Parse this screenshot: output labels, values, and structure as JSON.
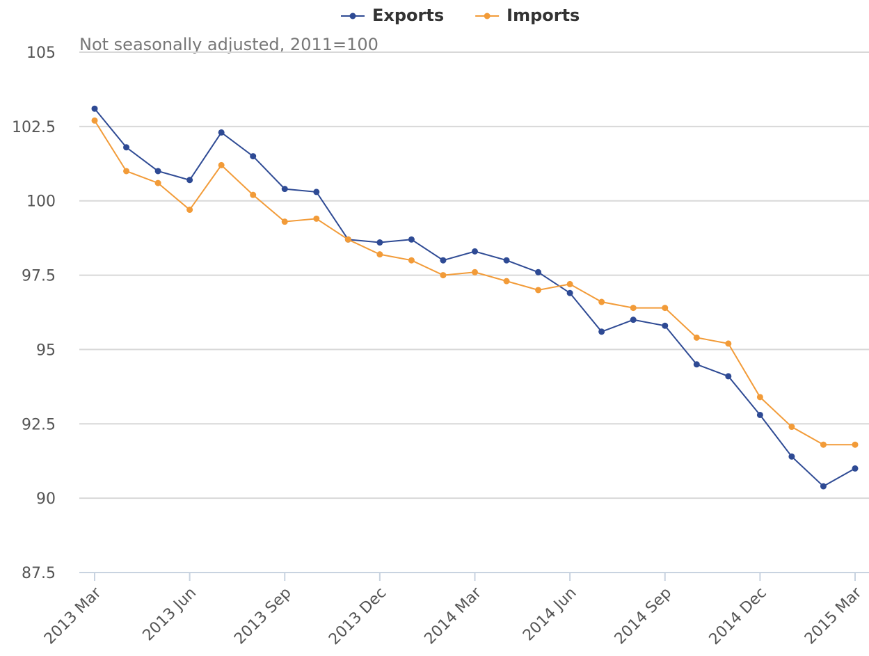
{
  "chart_data": {
    "type": "line",
    "subtitle": "Not seasonally adjusted, 2011=100",
    "categories": [
      "2013 Mar",
      null,
      null,
      "2013 Jun",
      null,
      null,
      "2013 Sep",
      null,
      null,
      "2013 Dec",
      null,
      null,
      "2014 Mar",
      null,
      null,
      "2014 Jun",
      null,
      null,
      "2014 Sep",
      null,
      null,
      "2014 Dec",
      null,
      null,
      "2015 Mar"
    ],
    "series": [
      {
        "name": "Exports",
        "color": "#2e4a94",
        "values": [
          103.1,
          101.8,
          101.0,
          100.7,
          102.3,
          101.5,
          100.4,
          100.3,
          98.7,
          98.6,
          98.7,
          98.0,
          98.3,
          98.0,
          97.6,
          96.9,
          95.6,
          96.0,
          95.8,
          94.5,
          94.1,
          92.8,
          91.4,
          90.4,
          91.0
        ]
      },
      {
        "name": "Imports",
        "color": "#f29b38",
        "values": [
          102.7,
          101.0,
          100.6,
          99.7,
          101.2,
          100.2,
          99.3,
          99.4,
          98.7,
          98.2,
          98.0,
          97.5,
          97.6,
          97.3,
          97.0,
          97.2,
          96.6,
          96.4,
          96.4,
          95.4,
          95.2,
          93.4,
          92.4,
          91.8,
          91.8
        ]
      }
    ],
    "ylim": [
      87.5,
      105
    ],
    "yticks": [
      87.5,
      90,
      92.5,
      95,
      97.5,
      100,
      102.5,
      105
    ],
    "grid": true,
    "legend": "top"
  }
}
